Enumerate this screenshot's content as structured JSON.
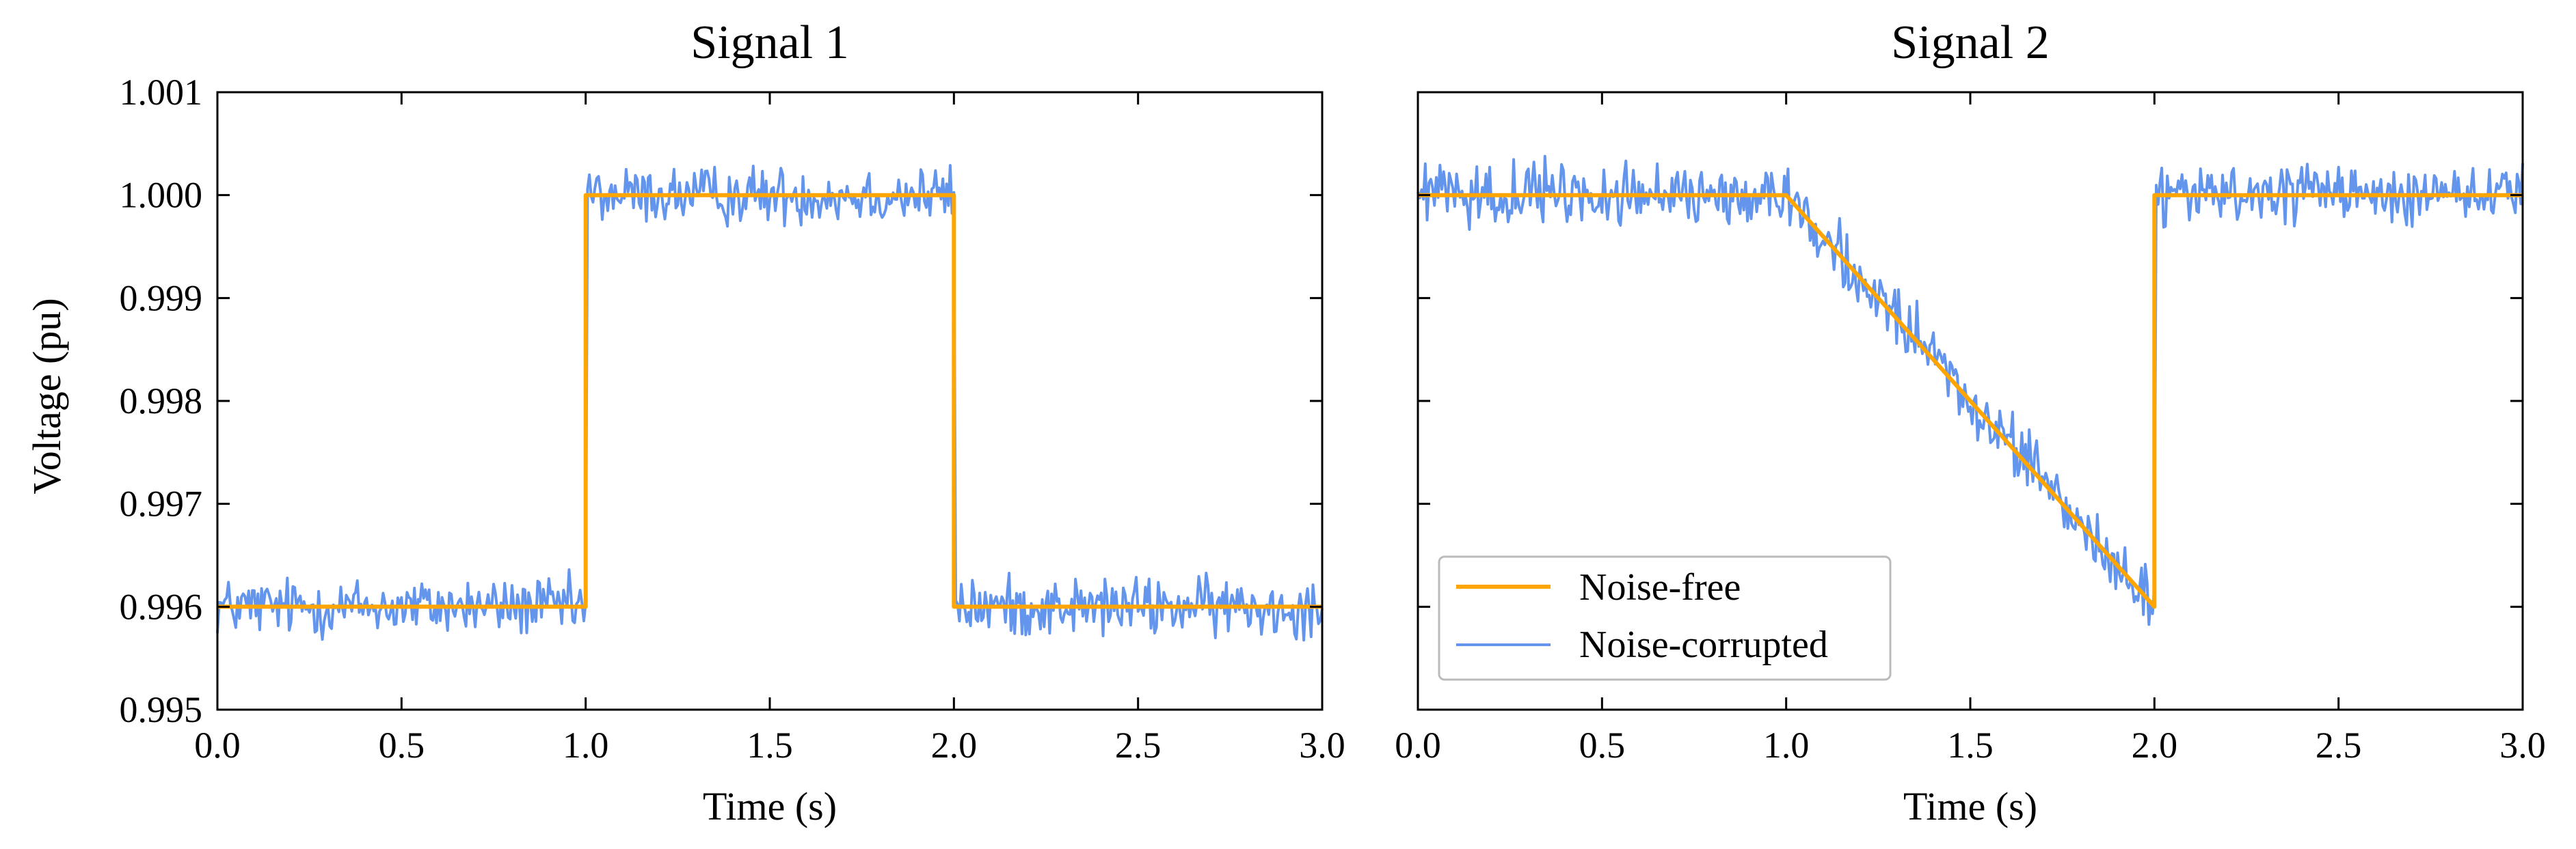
{
  "chart_data": [
    {
      "type": "line",
      "title": "Signal 1",
      "xlabel": "Time (s)",
      "ylabel": "Voltage (pu)",
      "xlim": [
        0.0,
        3.0
      ],
      "ylim": [
        0.995,
        1.001
      ],
      "xticks": [
        "0.0",
        "0.5",
        "1.0",
        "1.5",
        "2.0",
        "2.5",
        "3.0"
      ],
      "yticks": [
        "0.995",
        "0.996",
        "0.997",
        "0.998",
        "0.999",
        "1.000",
        "1.001"
      ],
      "series": [
        {
          "name": "Noise-free",
          "color": "#FFA500",
          "x": [
            0.0,
            1.0,
            1.0,
            2.0,
            2.0,
            3.0
          ],
          "y": [
            0.996,
            0.996,
            1.0,
            1.0,
            0.996,
            0.996
          ]
        },
        {
          "name": "Noise-corrupted",
          "color": "#6495ED",
          "noise_amplitude": 0.0002,
          "x": [
            0.0,
            1.0,
            1.0,
            2.0,
            2.0,
            3.0
          ],
          "y": [
            0.996,
            0.996,
            1.0,
            1.0,
            0.996,
            0.996
          ]
        }
      ]
    },
    {
      "type": "line",
      "title": "Signal 2",
      "xlabel": "Time (s)",
      "ylabel": "",
      "xlim": [
        0.0,
        3.0
      ],
      "ylim": [
        0.995,
        1.001
      ],
      "xticks": [
        "0.0",
        "0.5",
        "1.0",
        "1.5",
        "2.0",
        "2.5",
        "3.0"
      ],
      "yticks": [],
      "legend": {
        "position": "lower-left",
        "entries": [
          {
            "label": "Noise-free",
            "color": "#FFA500"
          },
          {
            "label": "Noise-corrupted",
            "color": "#6495ED"
          }
        ]
      },
      "series": [
        {
          "name": "Noise-free",
          "color": "#FFA500",
          "x": [
            0.0,
            1.0,
            2.0,
            2.0,
            3.0
          ],
          "y": [
            1.0,
            1.0,
            0.996,
            1.0,
            1.0
          ]
        },
        {
          "name": "Noise-corrupted",
          "color": "#6495ED",
          "noise_amplitude": 0.0002,
          "x": [
            0.0,
            1.0,
            2.0,
            2.0,
            3.0
          ],
          "y": [
            1.0,
            1.0,
            0.996,
            1.0,
            1.0
          ]
        }
      ]
    }
  ]
}
